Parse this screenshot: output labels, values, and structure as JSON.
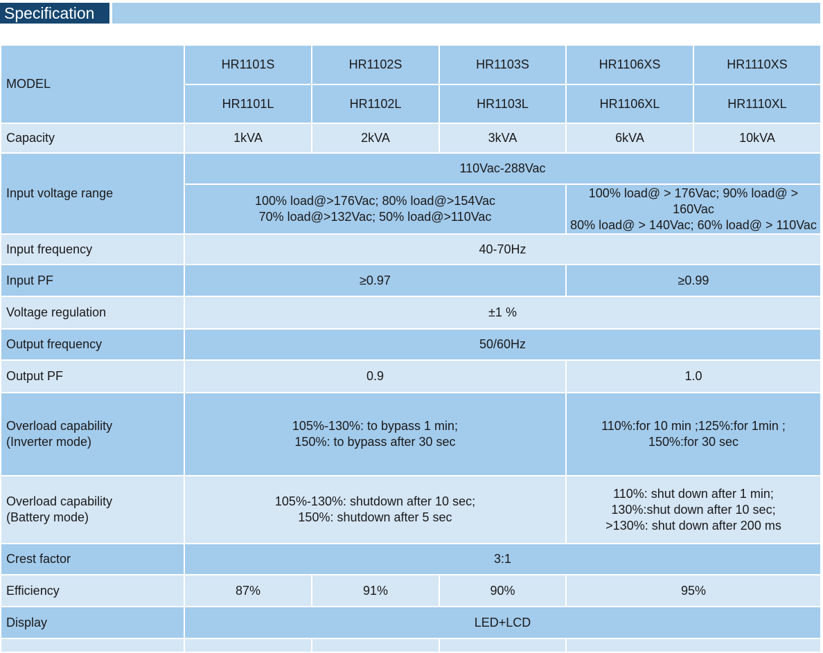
{
  "header": {
    "title": "Specification"
  },
  "table": {
    "model_label": "MODEL",
    "models_s": [
      "HR1101S",
      "HR1102S",
      "HR1103S",
      "HR1106XS",
      "HR1110XS"
    ],
    "models_l": [
      "HR1101L",
      "HR1102L",
      "HR1103L",
      "HR1106XL",
      "HR1110XL"
    ],
    "capacity_label": "Capacity",
    "capacity": [
      "1kVA",
      "2kVA",
      "3kVA",
      "6kVA",
      "10kVA"
    ],
    "input_voltage_label": "Input voltage range",
    "input_voltage_range": "110Vac-288Vac",
    "input_voltage_low_1": "100% load@>176Vac; 80% load@>154Vac",
    "input_voltage_low_2": "70% load@>132Vac; 50% load@>110Vac",
    "input_voltage_high_1": "100% load@ > 176Vac; 90% load@ > 160Vac",
    "input_voltage_high_2": "80% load@ > 140Vac; 60% load@ > 110Vac",
    "input_frequency_label": "Input frequency",
    "input_frequency": "40-70Hz",
    "input_pf_label": "Input PF",
    "input_pf_low": "≥0.97",
    "input_pf_high": "≥0.99",
    "voltage_regulation_label": "Voltage regulation",
    "voltage_regulation": "±1 %",
    "output_frequency_label": "Output frequency",
    "output_frequency": "50/60Hz",
    "output_pf_label": "Output PF",
    "output_pf_low": "0.9",
    "output_pf_high": "1.0",
    "overload_inv_label_1": "Overload capability",
    "overload_inv_label_2": "(Inverter mode)",
    "overload_inv_low_1": "105%-130%: to bypass 1 min;",
    "overload_inv_low_2": "150%: to bypass after 30 sec",
    "overload_inv_high_1": "110%:for 10 min ;125%:for 1min ;",
    "overload_inv_high_2": "150%:for 30 sec",
    "overload_bat_label_1": "Overload capability",
    "overload_bat_label_2": "(Battery mode)",
    "overload_bat_low_1": "105%-130%: shutdown after 10 sec;",
    "overload_bat_low_2": "150%: shutdown after 5 sec",
    "overload_bat_high_1": "110%: shut down after 1 min;",
    "overload_bat_high_2": "130%:shut down after 10 sec;",
    "overload_bat_high_3": ">130%: shut down after 200 ms",
    "crest_factor_label": "Crest factor",
    "crest_factor": "3:1",
    "efficiency_label": "Efficiency",
    "efficiency": [
      "87%",
      "91%",
      "90%",
      "95%"
    ],
    "display_label": "Display",
    "display": "LED+LCD"
  }
}
